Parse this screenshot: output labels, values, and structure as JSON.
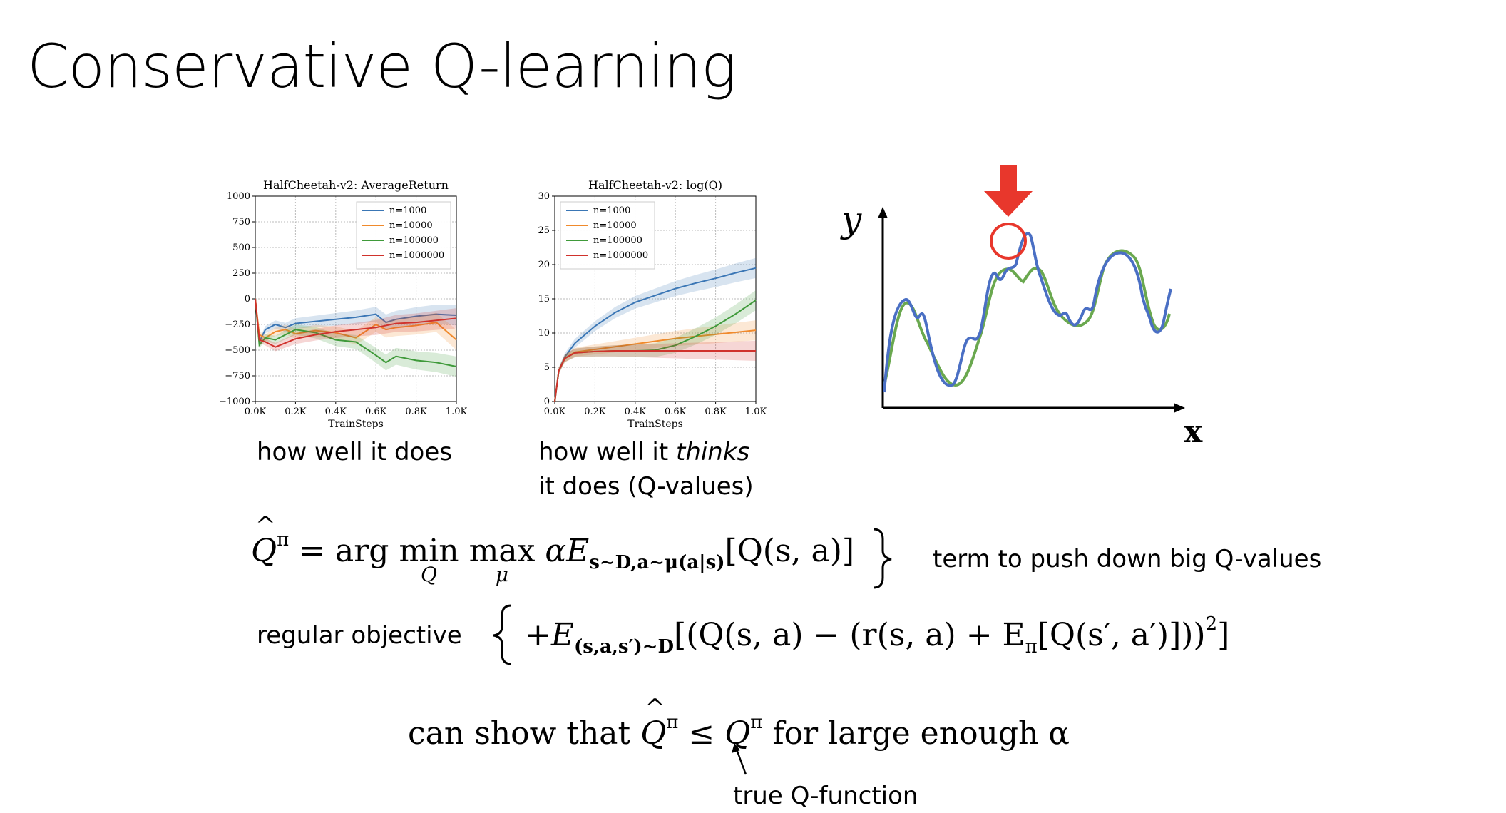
{
  "slide": {
    "title": "Conservative Q-learning"
  },
  "charts": {
    "left": {
      "chart_data": {
        "type": "line",
        "title": "HalfCheetah-v2: AverageReturn",
        "xlabel": "TrainSteps",
        "ylabel": "",
        "xlim": [
          0,
          1000
        ],
        "ylim": [
          -1000,
          1000
        ],
        "x_tick_labels": [
          "0.0K",
          "0.2K",
          "0.4K",
          "0.6K",
          "0.8K",
          "1.0K"
        ],
        "y_tick_labels": [
          "1000",
          "750",
          "500",
          "250",
          "0",
          "−250",
          "−500",
          "−750",
          "−1000"
        ],
        "grid": true,
        "legend": "top-right",
        "x": [
          0,
          20,
          50,
          100,
          150,
          200,
          300,
          400,
          500,
          600,
          650,
          700,
          800,
          900,
          1000
        ],
        "series": [
          {
            "name": "n=1000",
            "color": "#3a76b5",
            "values": [
              0,
              -420,
              -300,
              -250,
              -280,
              -240,
              -220,
              -200,
              -180,
              -150,
              -230,
              -200,
              -170,
              -150,
              -160
            ]
          },
          {
            "name": "n=10000",
            "color": "#f08a2c",
            "values": [
              0,
              -350,
              -380,
              -320,
              -300,
              -340,
              -310,
              -330,
              -380,
              -250,
              -300,
              -280,
              -260,
              -230,
              -400
            ]
          },
          {
            "name": "n=100000",
            "color": "#3f9a3a",
            "values": [
              0,
              -450,
              -380,
              -400,
              -350,
              -300,
              -330,
              -400,
              -420,
              -550,
              -620,
              -560,
              -600,
              -620,
              -660
            ]
          },
          {
            "name": "n=1000000",
            "color": "#d0322c",
            "values": [
              0,
              -400,
              -420,
              -470,
              -430,
              -390,
              -350,
              -320,
              -300,
              -280,
              -260,
              -240,
              -230,
              -210,
              -190
            ]
          }
        ]
      },
      "caption": "how well it does"
    },
    "right": {
      "chart_data": {
        "type": "line",
        "title": "HalfCheetah-v2: log(Q)",
        "xlabel": "TrainSteps",
        "ylabel": "",
        "xlim": [
          0,
          1000
        ],
        "ylim": [
          0,
          30
        ],
        "x_tick_labels": [
          "0.0K",
          "0.2K",
          "0.4K",
          "0.6K",
          "0.8K",
          "1.0K"
        ],
        "y_tick_labels": [
          "30",
          "25",
          "20",
          "15",
          "10",
          "5",
          "0"
        ],
        "grid": true,
        "legend": "top-left",
        "x": [
          0,
          20,
          50,
          100,
          200,
          300,
          400,
          500,
          600,
          700,
          800,
          900,
          1000
        ],
        "series": [
          {
            "name": "n=1000",
            "color": "#3a76b5",
            "values": [
              0,
              4.5,
              6.5,
              8.5,
              11,
              13,
              14.5,
              15.5,
              16.5,
              17.3,
              18,
              18.8,
              19.5
            ]
          },
          {
            "name": "n=10000",
            "color": "#f08a2c",
            "values": [
              0,
              4.5,
              6.3,
              7.2,
              7.6,
              8,
              8.4,
              8.8,
              9.2,
              9.5,
              9.8,
              10.1,
              10.4
            ]
          },
          {
            "name": "n=100000",
            "color": "#3f9a3a",
            "values": [
              0,
              4.5,
              6.3,
              7.1,
              7.3,
              7.4,
              7.4,
              7.5,
              8.2,
              9.5,
              11,
              12.8,
              14.8
            ]
          },
          {
            "name": "n=1000000",
            "color": "#d0322c",
            "values": [
              0,
              4.5,
              6.3,
              7.1,
              7.3,
              7.4,
              7.4,
              7.4,
              7.4,
              7.4,
              7.4,
              7.4,
              7.4
            ]
          }
        ]
      },
      "caption_prefix": "how well it ",
      "caption_emph": "thinks",
      "caption_line2": "it does (Q-values)"
    }
  },
  "sketch": {
    "y_label": "y",
    "x_label": "x",
    "arrow_color": "#e8372c",
    "circle_color": "#e8372c",
    "true_curve_color": "#6aa84f",
    "estimate_curve_color": "#4a6fc4"
  },
  "equation": {
    "lhs": "Q",
    "lhs_sup": "π",
    "eq_part1": "= arg",
    "min": "min",
    "min_under": "Q",
    "max": "max",
    "max_under": "μ",
    "term1": "αE",
    "term1_sub": "s∼D,a∼μ(a|s)",
    "term1_body": "[Q(s, a)]",
    "term1_note": "term to push down big Q-values",
    "term2_label": "regular objective",
    "term2_plus": "+E",
    "term2_sub": "(s,a,s′)∼D",
    "term2_body": "[(Q(s, a) − (r(s, a) + E",
    "term2_sub2": "π",
    "term2_body2": "[Q(s′, a′)]))",
    "term2_sq": "2",
    "term2_close": "]"
  },
  "claim": {
    "prefix": "can show that ",
    "qhat": "Q",
    "sup1": "π",
    "leq": " ≤ Q",
    "sup2": "π",
    "suffix": " for large enough α",
    "note": "true Q-function"
  }
}
